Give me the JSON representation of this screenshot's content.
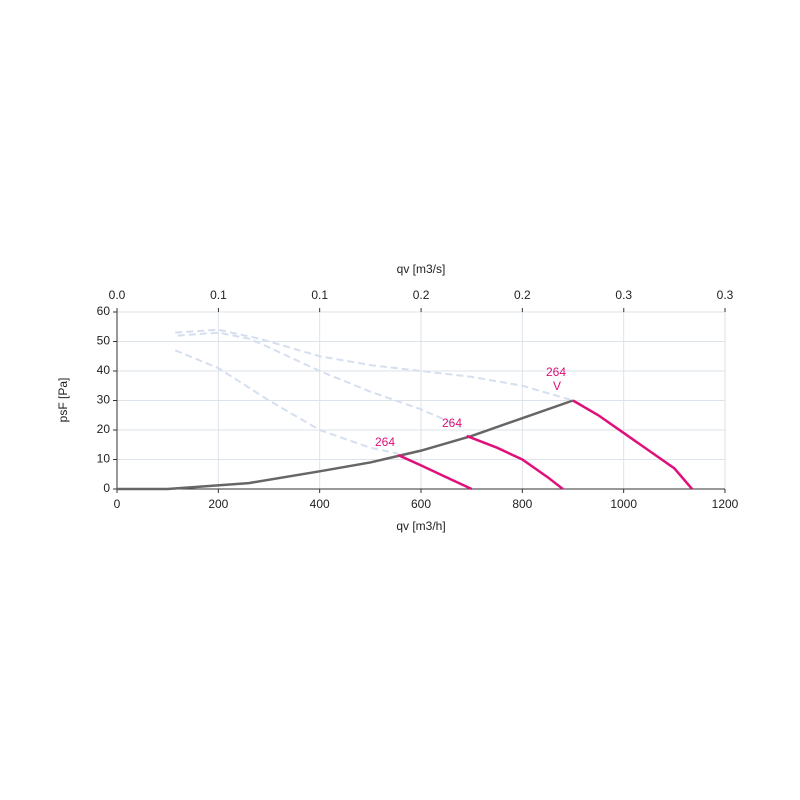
{
  "chart_data": {
    "type": "line",
    "title": "qv [m3/s]",
    "xlabel": "qv [m3/h]",
    "ylabel": "psF [Pa]",
    "xlim": [
      0,
      1200
    ],
    "xticks": [
      0,
      200,
      400,
      600,
      800,
      1000,
      1200
    ],
    "x2lim": [
      0,
      0.3333
    ],
    "x2ticks": [
      {
        "value": 0,
        "label": "0.0"
      },
      {
        "value": 0.0556,
        "label": "0.1"
      },
      {
        "value": 0.1111,
        "label": "0.1"
      },
      {
        "value": 0.1667,
        "label": "0.2"
      },
      {
        "value": 0.2222,
        "label": "0.2"
      },
      {
        "value": 0.2778,
        "label": "0.3"
      },
      {
        "value": 0.3333,
        "label": "0.3"
      }
    ],
    "ylim": [
      0,
      60
    ],
    "yticks": [
      0,
      10,
      20,
      30,
      40,
      50,
      60
    ],
    "grid": true,
    "series": [
      {
        "color": "#d5dff0",
        "dashed": true,
        "x": [
          115,
          200,
          280,
          400,
          500,
          600,
          700,
          800,
          900
        ],
        "values": [
          53,
          54,
          51,
          45,
          42,
          40,
          38,
          35,
          30
        ]
      },
      {
        "color": "#d5dff0",
        "dashed": true,
        "x": [
          120,
          200,
          260,
          300,
          400,
          500,
          600,
          680
        ],
        "values": [
          52,
          53,
          51,
          48,
          40,
          33,
          27,
          21
        ]
      },
      {
        "color": "#d5dff0",
        "dashed": true,
        "x": [
          115,
          200,
          300,
          400,
          500,
          555
        ],
        "values": [
          47,
          41,
          30,
          20,
          14,
          12
        ]
      },
      {
        "color": "#666666",
        "dashed": false,
        "x": [
          0,
          100,
          260,
          400,
          500,
          600,
          700,
          800,
          900
        ],
        "values": [
          0,
          0,
          2,
          6,
          9,
          13,
          18,
          24,
          30
        ]
      },
      {
        "color": "#e0107a",
        "dashed": false,
        "x": [
          555,
          600,
          650,
          700
        ],
        "values": [
          11.5,
          8,
          4,
          0
        ]
      },
      {
        "color": "#e0107a",
        "dashed": false,
        "x": [
          690,
          750,
          800,
          850,
          880
        ],
        "values": [
          18,
          14,
          10,
          4,
          0
        ]
      },
      {
        "color": "#e0107a",
        "dashed": false,
        "x": [
          900,
          950,
          1000,
          1050,
          1100,
          1135
        ],
        "values": [
          30,
          25,
          19,
          13,
          7,
          0
        ]
      }
    ],
    "annotations": [
      "264",
      "264",
      "264",
      "V"
    ]
  }
}
